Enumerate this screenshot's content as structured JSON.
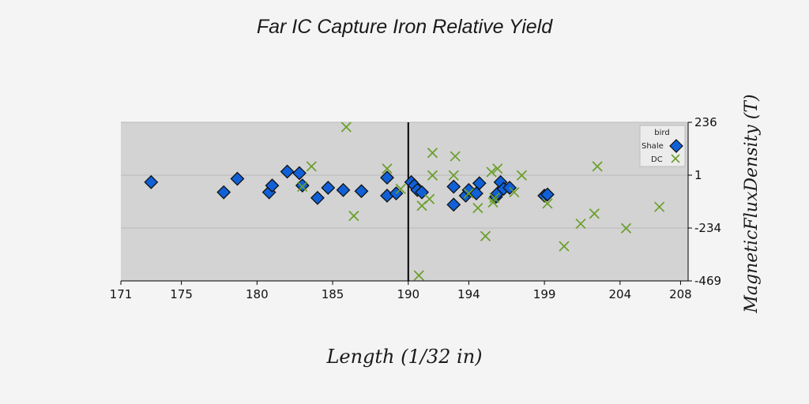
{
  "chart_data": {
    "type": "scatter",
    "title": "Far IC Capture Iron Relative Yield",
    "xlabel": "Length (1/32 in)",
    "ylabel": "MagneticFluxDensity (T)",
    "xlim": [
      171,
      208.5
    ],
    "ylim": [
      -469,
      236
    ],
    "x_ticks": [
      "171",
      "175",
      "180",
      "185",
      "190",
      "194",
      "199",
      "204",
      "208"
    ],
    "y_ticks": [
      "236",
      "1",
      "-234",
      "-469"
    ],
    "grid": true,
    "vertical_line_x": 190,
    "legend": {
      "title": "bird",
      "position": "top-right",
      "entries": [
        "Shale",
        "DC"
      ]
    },
    "series": [
      {
        "name": "Shale",
        "marker": "diamond",
        "color": "#1060d8",
        "x": [
          173,
          177.8,
          178.7,
          180.8,
          181,
          182,
          182.8,
          183,
          184,
          184.7,
          185.7,
          186.9,
          188.6,
          188.6,
          189.2,
          190.2,
          190.4,
          190.6,
          190.9,
          193,
          193,
          193.8,
          194,
          194.5,
          194.7,
          195.8,
          195.9,
          196.1,
          196.3,
          196.7,
          199,
          199.2
        ],
        "y": [
          -30,
          -75,
          -15,
          -75,
          -45,
          17,
          10,
          -45,
          -100,
          -55,
          -65,
          -70,
          -10,
          -90,
          -80,
          -30,
          -45,
          -65,
          -75,
          -50,
          -130,
          -90,
          -65,
          -80,
          -35,
          -95,
          -80,
          -30,
          -60,
          -55,
          -90,
          -85
        ]
      },
      {
        "name": "DC",
        "marker": "x",
        "color": "#6a9e2a",
        "x": [
          183,
          183.6,
          185.9,
          186.4,
          188.6,
          189.5,
          190.7,
          190.9,
          191.4,
          191.6,
          191.6,
          193,
          193.1,
          194,
          194.6,
          195.1,
          195.5,
          195.6,
          195.7,
          195.9,
          197,
          197.5,
          199.2,
          200.3,
          201.4,
          202.3,
          202.5,
          204.4,
          206.6
        ],
        "y": [
          -50,
          40,
          215,
          -180,
          30,
          -60,
          -445,
          -135,
          -105,
          100,
          0,
          0,
          85,
          -80,
          -145,
          -270,
          15,
          -120,
          -100,
          30,
          -75,
          0,
          -125,
          -315,
          -215,
          -170,
          40,
          -235,
          -140
        ]
      }
    ]
  }
}
